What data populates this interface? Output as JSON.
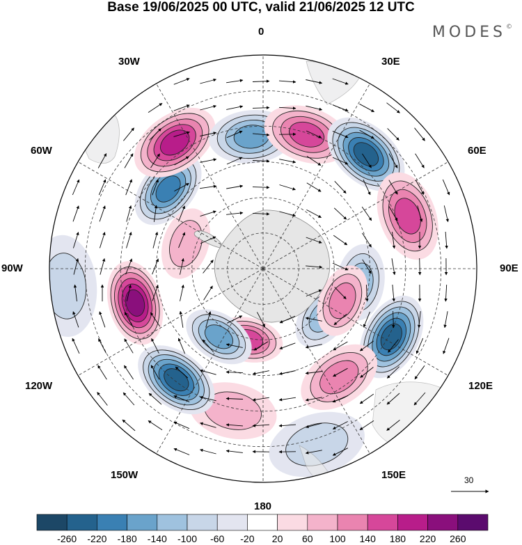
{
  "title": "Base 19/06/2025 00 UTC, valid 21/06/2025 12 UTC",
  "brand": "MODES",
  "brand_mark": "©",
  "lon_labels": {
    "top": "0",
    "top_right": "30E",
    "right_upper": "60E",
    "right": "90E",
    "right_lower": "120E",
    "bottom_right": "150E",
    "bottom": "180",
    "bottom_left": "150W",
    "left_lower": "120W",
    "left": "90W",
    "left_upper": "60W",
    "top_left": "30W"
  },
  "reference_vector": "30",
  "colorbar": {
    "ticks": [
      "-260",
      "-220",
      "-180",
      "-140",
      "-100",
      "-60",
      "-20",
      "20",
      "60",
      "100",
      "140",
      "180",
      "220",
      "260"
    ],
    "colors": [
      "#1c4766",
      "#24628d",
      "#3a80b3",
      "#6aa3cb",
      "#9fc2df",
      "#c8d6e8",
      "#e3e5f0",
      "#ffffff",
      "#fbdbe3",
      "#f4b3cb",
      "#ea84b0",
      "#d6479a",
      "#b81d8a",
      "#8a0f7c",
      "#5b0b6e"
    ]
  },
  "map": {
    "projection": "south-polar-stereographic",
    "field": "anomaly",
    "features": [
      {
        "lon": -50,
        "r": 0.58,
        "v": -190
      },
      {
        "lon": -35,
        "r": 0.72,
        "v": 200
      },
      {
        "lon": -5,
        "r": 0.62,
        "v": -170
      },
      {
        "lon": 18,
        "r": 0.66,
        "v": 170
      },
      {
        "lon": 42,
        "r": 0.72,
        "v": -230
      },
      {
        "lon": 70,
        "r": 0.72,
        "v": 170
      },
      {
        "lon": 98,
        "r": 0.46,
        "v": -120
      },
      {
        "lon": 118,
        "r": 0.68,
        "v": -240
      },
      {
        "lon": 145,
        "r": 0.62,
        "v": 130
      },
      {
        "lon": 128,
        "r": 0.36,
        "v": -100
      },
      {
        "lon": 112,
        "r": 0.4,
        "v": 120
      },
      {
        "lon": 163,
        "r": 0.86,
        "v": -90
      },
      {
        "lon": -168,
        "r": 0.68,
        "v": 90
      },
      {
        "lon": -168,
        "r": 0.34,
        "v": 170
      },
      {
        "lon": -147,
        "r": 0.38,
        "v": -150
      },
      {
        "lon": -142,
        "r": 0.66,
        "v": -230
      },
      {
        "lon": -105,
        "r": 0.62,
        "v": 240
      },
      {
        "lon": -95,
        "r": 0.93,
        "v": -90
      },
      {
        "lon": -72,
        "r": 0.38,
        "v": 80
      }
    ]
  }
}
